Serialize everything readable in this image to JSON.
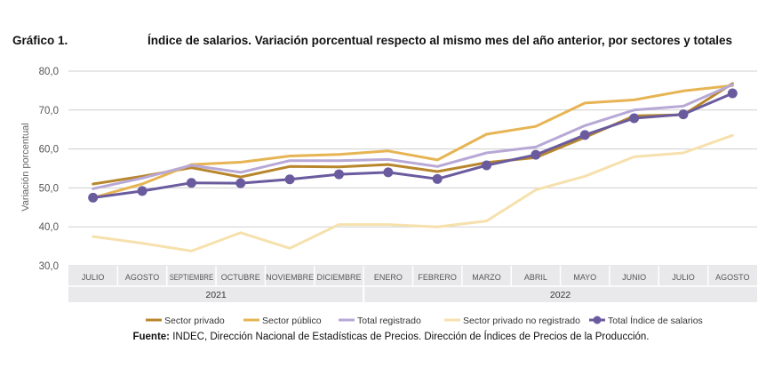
{
  "header": {
    "figure_label": "Gráfico 1.",
    "title": "Índice de salarios. Variación porcentual respecto al mismo mes del año anterior, por sectores y totales"
  },
  "source": {
    "prefix": "Fuente:",
    "text": " INDEC, Dirección Nacional de Estadísticas de Precios. Dirección de Índices de Precios de la Producción."
  },
  "chart_data": {
    "type": "line",
    "ylabel": "Variación porcentual",
    "ylim": [
      30,
      80
    ],
    "yticks": [
      "30,0",
      "40,0",
      "50,0",
      "60,0",
      "70,0",
      "80,0"
    ],
    "categories": [
      "JULIO",
      "AGOSTO",
      "SEPTIEMBRE",
      "OCTUBRE",
      "NOVIEMBRE",
      "DICIEMBRE",
      "ENERO",
      "FEBRERO",
      "MARZO",
      "ABRIL",
      "MAYO",
      "JUNIO",
      "JULIO",
      "AGOSTO"
    ],
    "year_groups": [
      {
        "label": "2021",
        "start": 0,
        "end": 5
      },
      {
        "label": "2022",
        "start": 6,
        "end": 13
      }
    ],
    "grid": true,
    "legend_position": "bottom",
    "series": [
      {
        "name": "Sector privado",
        "color": "#b8862c",
        "width": 3,
        "markers": false,
        "values": [
          51.0,
          53.0,
          55.2,
          52.8,
          55.5,
          55.4,
          56.0,
          54.2,
          56.5,
          57.8,
          63.0,
          68.5,
          68.8,
          76.8
        ]
      },
      {
        "name": "Sector público",
        "color": "#e6b453",
        "width": 3,
        "markers": false,
        "values": [
          47.5,
          51.0,
          56.0,
          56.6,
          58.2,
          58.6,
          59.5,
          57.2,
          63.8,
          65.8,
          71.8,
          72.6,
          74.9,
          76.3
        ]
      },
      {
        "name": "Total registrado",
        "color": "#b7a8d6",
        "width": 3,
        "markers": false,
        "values": [
          49.8,
          52.5,
          55.8,
          54.0,
          57.0,
          57.0,
          57.3,
          55.5,
          59.0,
          60.5,
          66.0,
          70.0,
          71.0,
          76.5
        ]
      },
      {
        "name": "Sector privado no registrado",
        "color": "#f6e1ad",
        "width": 3,
        "markers": false,
        "values": [
          37.5,
          35.8,
          33.8,
          38.5,
          34.5,
          40.6,
          40.6,
          40.0,
          41.5,
          49.5,
          53.0,
          58.0,
          59.0,
          63.5
        ]
      },
      {
        "name": "Total Índice de salarios",
        "color": "#6a5b9e",
        "width": 3,
        "markers": true,
        "values": [
          47.5,
          49.2,
          51.3,
          51.2,
          52.2,
          53.5,
          54.0,
          52.3,
          55.8,
          58.5,
          63.6,
          67.9,
          68.9,
          74.3
        ]
      }
    ]
  }
}
